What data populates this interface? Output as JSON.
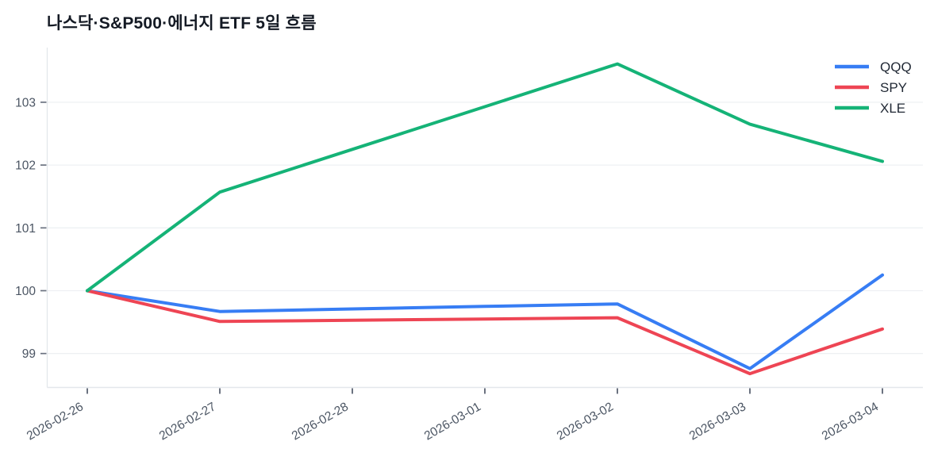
{
  "header": {
    "title": "나스닥·S&P500·에너지 ETF 5일 흐름"
  },
  "chart_data": {
    "type": "line",
    "title": "나스닥·S&P500·에너지 ETF 5일 흐름",
    "x_labels": [
      "2026-02-26",
      "2026-02-27",
      "2026-02-28",
      "2026-03-01",
      "2026-03-02",
      "2026-03-03",
      "2026-03-04"
    ],
    "series": [
      {
        "name": "QQQ",
        "color": "#377df4",
        "values": [
          100,
          99.67,
          99.71,
          99.75,
          99.79,
          98.76,
          100.25
        ]
      },
      {
        "name": "SPY",
        "color": "#ee4554",
        "values": [
          100,
          99.51,
          99.53,
          99.55,
          99.57,
          98.68,
          99.39
        ]
      },
      {
        "name": "XLE",
        "color": "#15b377",
        "values": [
          100,
          101.57,
          102.25,
          102.93,
          103.61,
          102.65,
          102.06
        ]
      }
    ],
    "y_ticks": [
      99,
      100,
      101,
      102,
      103
    ],
    "ylim": [
      98.46,
      103.87
    ],
    "x_tick_angle": -30,
    "grid": "horizontal-only",
    "legend_position": "top-right",
    "colors": {
      "grid": "#eef0f3",
      "axis": "#e3e7eb",
      "tick": "#6b7280",
      "label": "#4b5563",
      "legend_text": "#1f2733",
      "background": "#ffffff"
    }
  }
}
